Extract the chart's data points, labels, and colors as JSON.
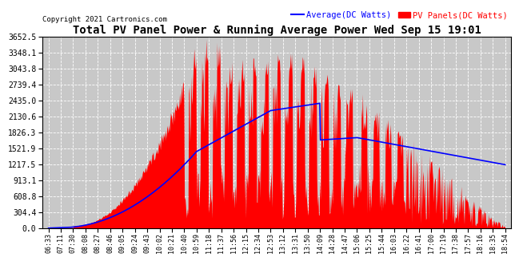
{
  "title": "Total PV Panel Power & Running Average Power Wed Sep 15 19:01",
  "copyright": "Copyright 2021 Cartronics.com",
  "legend_avg": "Average(DC Watts)",
  "legend_pv": "PV Panels(DC Watts)",
  "ylabel_color_avg": "#0000FF",
  "ylabel_color_pv": "#FF0000",
  "ylim": [
    0,
    3652.5
  ],
  "yticks": [
    0.0,
    304.4,
    608.8,
    913.1,
    1217.5,
    1521.9,
    1826.3,
    2130.6,
    2435.0,
    2739.4,
    3043.8,
    3348.1,
    3652.5
  ],
  "bg_color": "#FFFFFF",
  "plot_bg_color": "#C8C8C8",
  "grid_color": "#FFFFFF",
  "area_color": "#FF0000",
  "line_color": "#0000FF",
  "title_fontsize": 11,
  "xtick_labels": [
    "06:33",
    "07:11",
    "07:30",
    "08:08",
    "08:27",
    "08:46",
    "09:05",
    "09:24",
    "09:43",
    "10:02",
    "10:21",
    "10:40",
    "10:59",
    "11:18",
    "11:37",
    "11:56",
    "12:15",
    "12:34",
    "12:53",
    "13:12",
    "13:31",
    "13:50",
    "14:09",
    "14:28",
    "14:47",
    "15:06",
    "15:25",
    "15:44",
    "16:03",
    "16:22",
    "16:41",
    "17:00",
    "17:19",
    "17:38",
    "17:57",
    "18:16",
    "18:35",
    "18:54"
  ]
}
